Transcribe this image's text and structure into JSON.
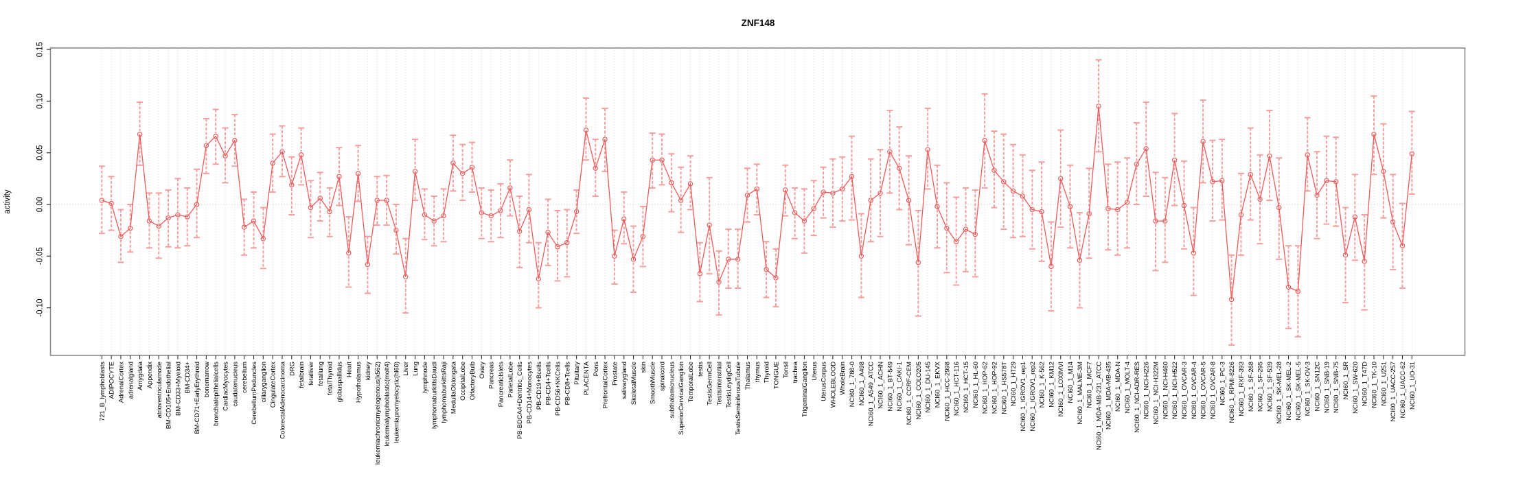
{
  "chart_data": {
    "type": "line",
    "title": "ZNF148",
    "ylabel": "activity",
    "xlabel": "",
    "ylim": [
      -0.147,
      0.151
    ],
    "ytick_labels": [
      "0.15",
      "0.10",
      "0.05",
      "0.00",
      "-0.05",
      "-0.10"
    ],
    "grid": "vertical dotted line per category; dotted horizontal line at zero",
    "legend": "none",
    "marker": "open-circle",
    "error_bars": true,
    "colors": {
      "line": "#ef5a5a",
      "marker": "#ef5a5a",
      "error_bar": "#f59e9e",
      "grid": "#d8d8d8",
      "zero_line": "#c8c8c8",
      "box": "#8a8a8a",
      "tick": "#303030",
      "text": "#000000"
    },
    "categories": [
      "721_B_lymphoblasts",
      "ADIPOCYTE",
      "AdrenalCortex",
      "adrenalgland",
      "Amygdala",
      "Appendix",
      "atrioventricularnode",
      "BM-CD105+Endothelial",
      "BM-CD33+Myeloid",
      "BM-CD34+",
      "BM-CD71+EarlyErythroid",
      "bonemarrow",
      "bronchialepithelialcells",
      "CardiacMyocytes",
      "caudatenucleus",
      "cerebellum",
      "CerebellumPeduncles",
      "ciliaryganglion",
      "CingulateCortex",
      "ColorectalAdenocarcinoma",
      "DRG",
      "fetalbrain",
      "fetalliver",
      "fetallung",
      "fetalThyroid",
      "globuspallidus",
      "Heart",
      "Hypothalamus",
      "kidney",
      "leukemiachronicmyelogenous(k562)",
      "leukemialymphoblastic(molt4)",
      "leukemiapromyelocytic(hl60)",
      "Liver",
      "Lung",
      "lymphnode",
      "lymphomaburkittsDaudi",
      "lymphomaburkittsRaji",
      "MedullaOblongata",
      "OccipitalLobe",
      "OlfactoryBulb",
      "Ovary",
      "Pancreas",
      "PancreaticIslets",
      "ParietalLobe",
      "PB-BDCA4+Dentritic_Cells",
      "PB-CD14+Monocytes",
      "PB-CD19+Bcells",
      "PB-CD4+Tcells",
      "PB-CD56+NKCells",
      "PB-CD8+Tcells",
      "Pituitary",
      "PLACENTA",
      "Pons",
      "PrefrontalCortex",
      "Prostate",
      "salivarygland",
      "SkeletalMuscle",
      "skin",
      "SmoothMuscle",
      "spinalcord",
      "subthalamicnucleus",
      "SuperiorCervicalGanglion",
      "TemporalLobe",
      "testis",
      "TestisGermCell",
      "TestisInterstitial",
      "TestisLeydigCell",
      "TestisSeminiferousTubule",
      "Thalamus",
      "thymus",
      "Thyroid",
      "TONGUE",
      "Tonsil",
      "trachea",
      "TrigeminalGanglion",
      "Uterus",
      "UterusCorpus",
      "WHOLEBLOOD",
      "WholeBrain",
      "NCI60_1_786-0",
      "NCI60_1_A498",
      "NCI60_1_A549_ATCC",
      "NCI60_1_ACHN",
      "NCI60_1_BT-549",
      "NCI60_1_CAKI-1",
      "NCI60_1_CCRF-CEM",
      "NCI60_1_COLO205",
      "NCI60_1_DU-145",
      "NCI60_1_EKVX",
      "NCI60_1_HCC-2998",
      "NCI60_1_HCT-116",
      "NCI60_1_HCT-15",
      "NCI60_1_HL-60",
      "NCI60_1_HOP-62",
      "NCI60_1_HOP-92",
      "NCI60_1_HS578T",
      "NCI60_1_HT29",
      "NCI60_1_IGROV1_rep1",
      "NCI60_1_IGROV1_rep2",
      "NCI60_1_K-562",
      "NCI60_1_KM12",
      "NCI60_1_LOXIMVI",
      "NCI60_1_M14",
      "NCI60_1_MALME-3M",
      "NCI60_1_MCF7",
      "NCI60_1_MDA-MB-231_ATCC",
      "NCI60_1_MDA-MB-435",
      "NCI60_1_MDA-N",
      "NCI60_1_MOLT-4",
      "NCI60_1_NCI-ADR-RES",
      "NCI60_1_NCI-H226",
      "NCI60_1_NCI-H322M",
      "NCI60_1_NCI-H460",
      "NCI60_1_NCI-H522",
      "NCI60_1_OVCAR-3",
      "NCI60_1_OVCAR-4",
      "NCI60_1_OVCAR-5",
      "NCI60_1_OVCAR-8",
      "NCI60_1_PC-3",
      "NCI60_1_RPMI-8226",
      "NCI60_1_RXF-393",
      "NCI60_1_SF-268",
      "NCI60_1_SF-295",
      "NCI60_1_SF-539",
      "NCI60_1_SK-MEL-28",
      "NCI60_1_SK-MEL-2",
      "NCI60_1_SK-MEL-5",
      "NCI60_1_SK-OV-3",
      "NCI60_1_SN12C",
      "NCI60_1_SNB-19",
      "NCI60_1_SNB-75",
      "NCI60_1_SR",
      "NCI60_1_SW-620",
      "NCI60_1_T47D",
      "NCI60_1_TK-10",
      "NCI60_1_U251",
      "NCI60_1_UACC-257",
      "NCI60_1_UACC-62",
      "NCI60_1_UO-31"
    ],
    "values": [
      0.004,
      0.001,
      -0.031,
      -0.023,
      0.068,
      -0.016,
      -0.021,
      -0.013,
      -0.01,
      -0.012,
      0.0,
      0.057,
      0.066,
      0.047,
      0.062,
      -0.022,
      -0.016,
      -0.033,
      0.04,
      0.051,
      0.019,
      0.048,
      -0.003,
      0.006,
      -0.007,
      0.027,
      -0.047,
      0.03,
      -0.058,
      0.004,
      0.004,
      -0.025,
      -0.07,
      0.032,
      -0.01,
      -0.016,
      -0.011,
      0.04,
      0.03,
      0.036,
      -0.008,
      -0.011,
      -0.006,
      0.016,
      -0.026,
      -0.005,
      -0.072,
      -0.027,
      -0.041,
      -0.037,
      -0.007,
      0.072,
      0.035,
      0.063,
      -0.05,
      -0.014,
      -0.053,
      -0.031,
      0.043,
      0.043,
      0.021,
      0.004,
      0.02,
      -0.067,
      -0.02,
      -0.075,
      -0.053,
      -0.053,
      0.009,
      0.015,
      -0.063,
      -0.071,
      0.014,
      -0.008,
      -0.016,
      -0.004,
      0.012,
      0.011,
      0.015,
      0.027,
      -0.05,
      0.004,
      0.011,
      0.051,
      0.035,
      0.004,
      -0.056,
      0.053,
      -0.002,
      -0.023,
      -0.036,
      -0.024,
      -0.029,
      0.062,
      0.033,
      0.022,
      0.013,
      0.008,
      -0.005,
      -0.007,
      -0.06,
      0.025,
      -0.002,
      -0.054,
      -0.009,
      0.095,
      -0.004,
      -0.005,
      0.002,
      0.039,
      0.054,
      -0.016,
      -0.016,
      0.043,
      -0.001,
      -0.047,
      0.061,
      0.022,
      0.023,
      -0.092,
      -0.01,
      0.029,
      0.005,
      0.047,
      -0.003,
      -0.08,
      -0.084,
      0.048,
      0.009,
      0.023,
      0.022,
      -0.049,
      -0.012,
      -0.055,
      0.068,
      0.032,
      -0.017,
      -0.04,
      0.049
    ],
    "err_lo": [
      -0.028,
      -0.025,
      -0.056,
      -0.046,
      0.038,
      -0.042,
      -0.052,
      -0.041,
      -0.042,
      -0.04,
      -0.032,
      0.03,
      0.039,
      0.021,
      0.037,
      -0.049,
      -0.042,
      -0.062,
      0.012,
      0.027,
      -0.01,
      0.019,
      -0.032,
      -0.016,
      -0.031,
      -0.001,
      -0.08,
      0.003,
      -0.086,
      -0.02,
      -0.02,
      -0.048,
      -0.105,
      0.004,
      -0.034,
      -0.04,
      -0.036,
      0.013,
      0.004,
      0.012,
      -0.033,
      -0.036,
      -0.032,
      -0.011,
      -0.061,
      -0.037,
      -0.1,
      -0.059,
      -0.074,
      -0.07,
      -0.028,
      0.043,
      0.008,
      0.032,
      -0.077,
      -0.038,
      -0.085,
      -0.06,
      0.016,
      0.019,
      -0.007,
      -0.027,
      -0.005,
      -0.094,
      -0.067,
      -0.107,
      -0.081,
      -0.081,
      -0.017,
      -0.01,
      -0.09,
      -0.099,
      -0.011,
      -0.033,
      -0.047,
      -0.03,
      -0.013,
      -0.022,
      -0.016,
      -0.015,
      -0.09,
      -0.036,
      -0.031,
      0.011,
      -0.005,
      -0.039,
      -0.108,
      0.015,
      -0.042,
      -0.066,
      -0.078,
      -0.065,
      -0.07,
      0.016,
      -0.003,
      -0.024,
      -0.032,
      -0.031,
      -0.043,
      -0.055,
      -0.103,
      -0.022,
      -0.042,
      -0.1,
      -0.052,
      0.051,
      -0.044,
      -0.049,
      -0.042,
      0.0,
      0.008,
      -0.064,
      -0.056,
      -0.001,
      -0.043,
      -0.088,
      0.021,
      -0.016,
      -0.015,
      -0.136,
      -0.049,
      -0.015,
      -0.038,
      0.004,
      -0.053,
      -0.12,
      -0.128,
      0.013,
      -0.033,
      -0.019,
      -0.021,
      -0.095,
      -0.054,
      -0.102,
      0.029,
      -0.013,
      -0.063,
      -0.081,
      0.01
    ],
    "err_hi": [
      0.037,
      0.027,
      -0.005,
      0.0,
      0.099,
      0.011,
      0.011,
      0.014,
      0.025,
      0.016,
      0.034,
      0.083,
      0.092,
      0.074,
      0.087,
      0.005,
      0.012,
      -0.003,
      0.068,
      0.076,
      0.046,
      0.074,
      0.023,
      0.031,
      0.016,
      0.055,
      -0.012,
      0.057,
      -0.031,
      0.027,
      0.028,
      0.0,
      -0.033,
      0.063,
      0.015,
      0.008,
      0.015,
      0.067,
      0.058,
      0.06,
      0.016,
      0.014,
      0.02,
      0.043,
      0.008,
      0.029,
      -0.037,
      0.005,
      -0.006,
      -0.005,
      0.014,
      0.103,
      0.063,
      0.093,
      -0.025,
      0.012,
      -0.021,
      -0.002,
      0.069,
      0.068,
      0.049,
      0.036,
      0.047,
      -0.037,
      0.026,
      -0.045,
      -0.024,
      -0.024,
      0.035,
      0.039,
      -0.036,
      -0.043,
      0.038,
      0.016,
      0.015,
      0.023,
      0.036,
      0.044,
      0.046,
      0.066,
      -0.009,
      0.044,
      0.053,
      0.091,
      0.075,
      0.047,
      -0.006,
      0.093,
      0.038,
      0.021,
      0.007,
      0.016,
      0.014,
      0.107,
      0.071,
      0.068,
      0.058,
      0.048,
      0.033,
      0.041,
      -0.017,
      0.072,
      0.038,
      -0.008,
      0.035,
      0.14,
      0.039,
      0.041,
      0.045,
      0.079,
      0.099,
      0.031,
      0.026,
      0.088,
      0.042,
      -0.003,
      0.101,
      0.062,
      0.063,
      -0.049,
      0.03,
      0.074,
      0.048,
      0.091,
      0.045,
      -0.04,
      -0.04,
      0.084,
      0.051,
      0.066,
      0.065,
      -0.003,
      0.029,
      -0.01,
      0.105,
      0.078,
      0.029,
      0.001,
      0.09
    ]
  }
}
